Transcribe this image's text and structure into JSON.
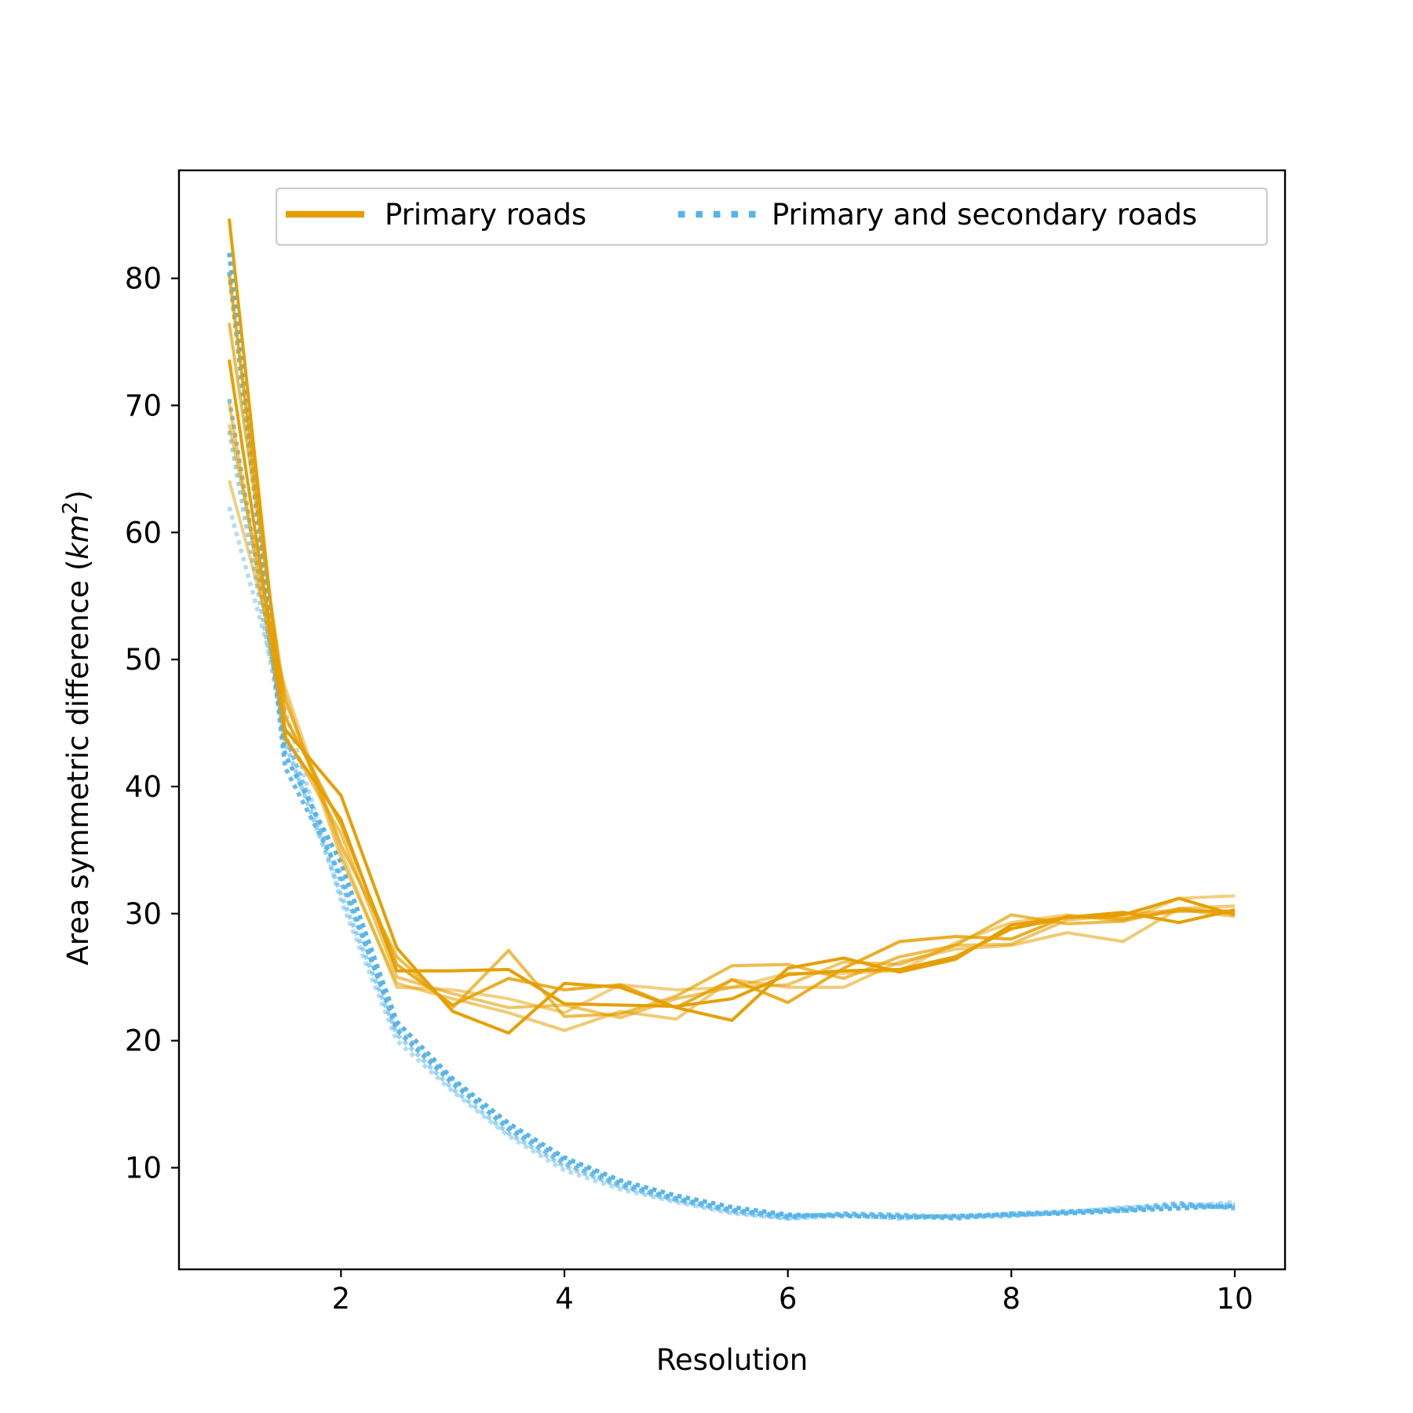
{
  "chart_data": {
    "type": "line",
    "xlabel": "Resolution",
    "ylabel_main": "Area symmetric difference (",
    "ylabel_unit": "km",
    "ylabel_sup": "2",
    "ylabel_close": ")",
    "xlim": [
      0.55,
      10.45
    ],
    "ylim": [
      2.0,
      88.5
    ],
    "xticks": [
      2,
      4,
      6,
      8,
      10
    ],
    "yticks": [
      10,
      20,
      30,
      40,
      50,
      60,
      70,
      80
    ],
    "legend_position": "top-right",
    "grid": false,
    "colors": {
      "primary": "#E69F00",
      "secondary": "#56B4E9"
    },
    "legend": [
      {
        "label": "Primary roads",
        "style": "solid",
        "color": "#E69F00"
      },
      {
        "label": "Primary and secondary roads",
        "style": "dotted",
        "color": "#56B4E9"
      }
    ],
    "primary_x": [
      1.0,
      1.5,
      2.0,
      2.5,
      3.0,
      3.5,
      4.0,
      4.5,
      5.0,
      5.5,
      6.0,
      6.5,
      7.0,
      7.5,
      8.0,
      8.5,
      9.0,
      9.5,
      10.0
    ],
    "primary_series": [
      {
        "opacity": 1.0,
        "values": [
          84.7,
          43.8,
          37.4,
          25.5,
          25.5,
          25.6,
          22.9,
          22.8,
          22.7,
          23.3,
          25.2,
          25.5,
          25.6,
          26.6,
          28.8,
          29.7,
          30.1,
          29.3,
          30.3
        ]
      },
      {
        "opacity": 1.0,
        "values": [
          73.6,
          44.5,
          39.3,
          27.3,
          22.3,
          20.6,
          24.5,
          24.2,
          22.6,
          21.6,
          25.7,
          26.5,
          25.4,
          26.4,
          29.1,
          29.7,
          29.9,
          31.2,
          29.9
        ]
      },
      {
        "opacity": 0.85,
        "values": [
          80.3,
          45.5,
          37.0,
          26.0,
          22.8,
          24.9,
          24.0,
          24.4,
          22.6,
          24.8,
          23.0,
          25.7,
          27.8,
          28.2,
          28.0,
          29.8,
          29.6,
          30.2,
          30.2
        ]
      },
      {
        "opacity": 0.7,
        "values": [
          76.5,
          46.8,
          35.4,
          26.6,
          22.6,
          27.1,
          21.9,
          22.1,
          23.5,
          25.9,
          26.0,
          24.9,
          26.6,
          27.5,
          29.9,
          29.2,
          29.4,
          30.4,
          30.0
        ]
      },
      {
        "opacity": 0.6,
        "values": [
          70.2,
          44.0,
          36.3,
          25.0,
          23.7,
          22.6,
          22.8,
          21.8,
          23.3,
          24.2,
          24.4,
          26.2,
          26.0,
          27.5,
          27.6,
          29.5,
          29.9,
          30.3,
          29.8
        ]
      },
      {
        "opacity": 0.55,
        "values": [
          68.5,
          47.2,
          34.4,
          24.5,
          23.3,
          22.2,
          20.8,
          22.3,
          21.7,
          24.8,
          24.2,
          24.2,
          26.2,
          27.2,
          27.5,
          28.5,
          27.8,
          30.4,
          30.6
        ]
      },
      {
        "opacity": 0.5,
        "values": [
          64.1,
          47.8,
          34.9,
          24.2,
          24.0,
          23.3,
          22.2,
          24.4,
          24.0,
          24.2,
          25.3,
          25.3,
          25.5,
          27.7,
          29.3,
          29.9,
          29.4,
          31.2,
          31.4
        ]
      }
    ],
    "secondary_x": [
      1.0,
      1.5,
      2.0,
      2.5,
      3.0,
      3.5,
      4.0,
      4.5,
      5.0,
      5.5,
      6.0,
      6.5,
      7.0,
      7.5,
      8.0,
      8.5,
      9.0,
      9.5,
      10.0
    ],
    "secondary_series": [
      {
        "opacity": 1.0,
        "values": [
          82.0,
          42.5,
          34.0,
          21.5,
          17.0,
          13.5,
          10.8,
          9.0,
          7.8,
          6.9,
          6.3,
          6.2,
          6.1,
          6.2,
          6.3,
          6.4,
          6.6,
          6.8,
          7.0
        ]
      },
      {
        "opacity": 0.9,
        "values": [
          80.5,
          41.5,
          33.0,
          20.8,
          16.6,
          13.2,
          10.6,
          8.8,
          7.6,
          6.7,
          6.2,
          6.3,
          6.2,
          6.0,
          6.4,
          6.5,
          6.7,
          7.0,
          6.9
        ]
      },
      {
        "opacity": 0.8,
        "values": [
          70.5,
          44.0,
          32.5,
          21.0,
          16.8,
          13.0,
          10.3,
          8.6,
          7.5,
          6.6,
          6.1,
          6.4,
          6.3,
          6.1,
          6.2,
          6.5,
          6.8,
          7.2,
          6.8
        ]
      },
      {
        "opacity": 0.6,
        "values": [
          68.0,
          43.5,
          31.5,
          20.5,
          16.2,
          12.7,
          10.1,
          8.5,
          7.4,
          6.5,
          6.0,
          6.3,
          6.0,
          6.2,
          6.3,
          6.6,
          6.6,
          7.1,
          7.1
        ]
      },
      {
        "opacity": 0.45,
        "values": [
          62.0,
          46.0,
          31.0,
          20.0,
          16.0,
          12.5,
          9.8,
          8.3,
          7.3,
          6.4,
          6.0,
          6.2,
          6.1,
          6.2,
          6.4,
          6.5,
          6.9,
          6.9,
          7.3
        ]
      }
    ]
  }
}
